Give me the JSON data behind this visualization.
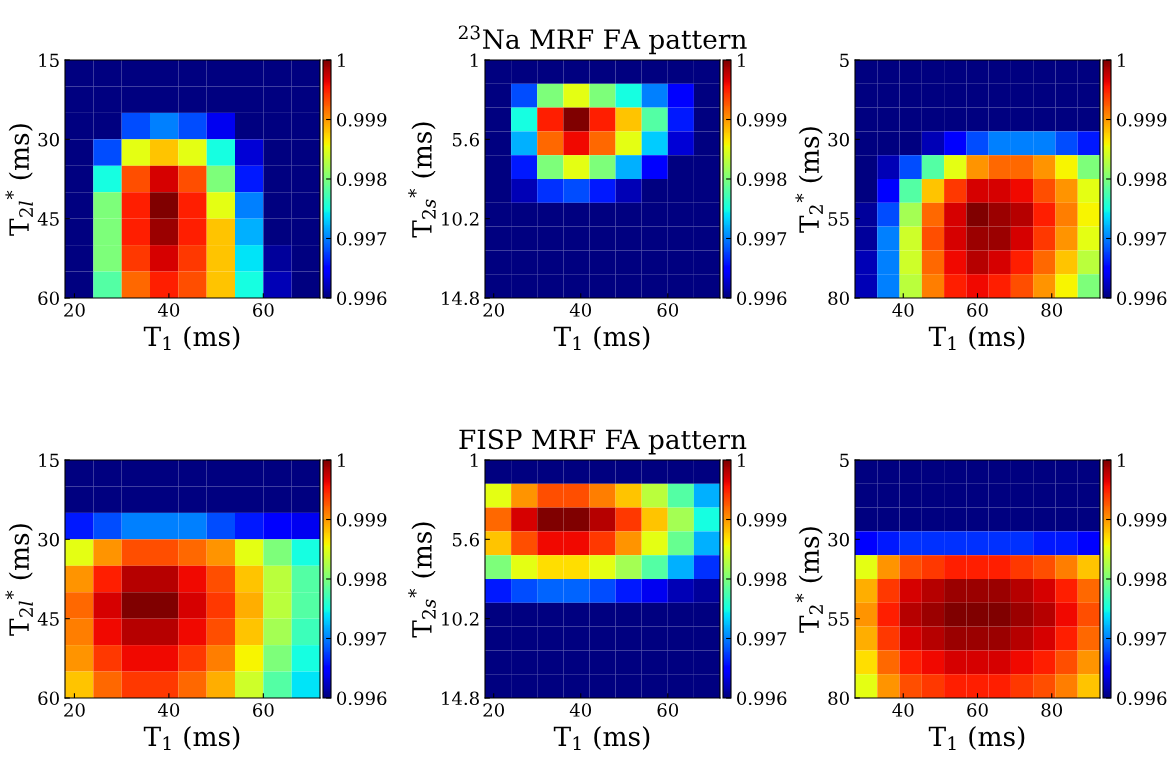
{
  "chart_data": [
    {
      "type": "heatmap",
      "xlabel": "T$_{1}$ (ms)",
      "ylabel": "T$_{2l}$$^{*}$ (ms)",
      "x": [
        21,
        27,
        33,
        39,
        45,
        51,
        57,
        63,
        69
      ],
      "y": [
        17.5,
        22.5,
        27.5,
        32.5,
        37.5,
        42.5,
        47.5,
        52.5,
        57.5
      ],
      "xlim": [
        18,
        72
      ],
      "ylim": [
        60,
        15
      ],
      "xticks": [
        20,
        40,
        60
      ],
      "yticks": [
        15,
        30,
        45,
        60
      ],
      "clim": [
        0.996,
        1
      ],
      "cticks": [
        0.996,
        0.997,
        0.998,
        0.999,
        1
      ],
      "cells": [
        [
          0.996,
          0.996,
          0.996,
          0.996,
          0.996,
          0.996,
          0.996,
          0.996,
          0.996
        ],
        [
          0.996,
          0.996,
          0.996,
          0.996,
          0.996,
          0.996,
          0.996,
          0.996,
          0.996
        ],
        [
          0.996,
          0.996,
          0.9968,
          0.997,
          0.9968,
          0.9964,
          0.996,
          0.996,
          0.996
        ],
        [
          0.996,
          0.9968,
          0.9985,
          0.9988,
          0.9985,
          0.9975,
          0.9963,
          0.996,
          0.996
        ],
        [
          0.996,
          0.9975,
          0.9993,
          0.9997,
          0.9993,
          0.998,
          0.9966,
          0.996,
          0.996
        ],
        [
          0.996,
          0.998,
          0.9995,
          1.0,
          0.9995,
          0.9985,
          0.997,
          0.996,
          0.996
        ],
        [
          0.996,
          0.998,
          0.9995,
          0.9999,
          0.9995,
          0.9988,
          0.9972,
          0.996,
          0.996
        ],
        [
          0.996,
          0.998,
          0.9994,
          0.9997,
          0.9994,
          0.9988,
          0.9974,
          0.9961,
          0.996
        ],
        [
          0.996,
          0.9978,
          0.9992,
          0.9995,
          0.9993,
          0.9988,
          0.9975,
          0.9962,
          0.996
        ]
      ]
    },
    {
      "type": "heatmap",
      "title": "$^{23}$Na MRF FA pattern",
      "xlabel": "T$_{1}$ (ms)",
      "ylabel": "T$_{2s}$$^{*}$ (ms)",
      "x": [
        21,
        27,
        33,
        39,
        45,
        51,
        57,
        63,
        69
      ],
      "y": [
        1.69,
        3.07,
        4.45,
        5.83,
        7.21,
        8.59,
        9.97,
        11.35,
        12.73,
        14.11
      ],
      "xlim": [
        18,
        72
      ],
      "ylim": [
        14.8,
        1
      ],
      "xticks": [
        20,
        40,
        60
      ],
      "yticks": [
        1,
        5.6,
        10.2,
        14.8
      ],
      "clim": [
        0.996,
        1
      ],
      "cticks": [
        0.996,
        0.997,
        0.998,
        0.999,
        1
      ],
      "cells": [
        [
          0.996,
          0.996,
          0.996,
          0.996,
          0.996,
          0.996,
          0.996,
          0.996,
          0.996
        ],
        [
          0.996,
          0.9968,
          0.998,
          0.9985,
          0.998,
          0.9975,
          0.997,
          0.9965,
          0.996
        ],
        [
          0.996,
          0.9975,
          0.9995,
          1.0,
          0.9995,
          0.9988,
          0.9978,
          0.9966,
          0.996
        ],
        [
          0.996,
          0.9972,
          0.9992,
          0.9996,
          0.9992,
          0.9985,
          0.9973,
          0.9963,
          0.996
        ],
        [
          0.996,
          0.9966,
          0.998,
          0.9985,
          0.998,
          0.9972,
          0.9965,
          0.996,
          0.996
        ],
        [
          0.996,
          0.9962,
          0.9967,
          0.9968,
          0.9966,
          0.9962,
          0.996,
          0.996,
          0.996
        ],
        [
          0.996,
          0.996,
          0.996,
          0.996,
          0.996,
          0.996,
          0.996,
          0.996,
          0.996
        ],
        [
          0.996,
          0.996,
          0.996,
          0.996,
          0.996,
          0.996,
          0.996,
          0.996,
          0.996
        ],
        [
          0.996,
          0.996,
          0.996,
          0.996,
          0.996,
          0.996,
          0.996,
          0.996,
          0.996
        ],
        [
          0.996,
          0.996,
          0.996,
          0.996,
          0.996,
          0.996,
          0.996,
          0.996,
          0.996
        ]
      ]
    },
    {
      "type": "heatmap",
      "xlabel": "T$_{1}$ (ms)",
      "ylabel": "T$_{2}$$^{*}$ (ms)",
      "x": [
        30,
        36,
        42,
        48,
        54,
        60,
        66,
        72,
        78,
        84,
        90
      ],
      "y": [
        8.75,
        16.25,
        23.75,
        31.25,
        38.75,
        46.25,
        53.75,
        61.25,
        68.75,
        76.25
      ],
      "xlim": [
        27,
        93
      ],
      "ylim": [
        80,
        5
      ],
      "xticks": [
        40,
        60,
        80
      ],
      "yticks": [
        5,
        30,
        55,
        80
      ],
      "clim": [
        0.996,
        1
      ],
      "cticks": [
        0.996,
        0.997,
        0.998,
        0.999,
        1
      ],
      "cells": [
        [
          0.996,
          0.996,
          0.996,
          0.996,
          0.996,
          0.996,
          0.996,
          0.996,
          0.996,
          0.996,
          0.996
        ],
        [
          0.996,
          0.996,
          0.996,
          0.996,
          0.996,
          0.996,
          0.996,
          0.996,
          0.996,
          0.996,
          0.996
        ],
        [
          0.996,
          0.996,
          0.996,
          0.996,
          0.996,
          0.996,
          0.996,
          0.996,
          0.996,
          0.996,
          0.996
        ],
        [
          0.996,
          0.996,
          0.996,
          0.9962,
          0.9965,
          0.9968,
          0.997,
          0.997,
          0.997,
          0.9968,
          0.9966
        ],
        [
          0.996,
          0.9962,
          0.9968,
          0.9978,
          0.9985,
          0.999,
          0.9992,
          0.9992,
          0.999,
          0.9986,
          0.998
        ],
        [
          0.996,
          0.9965,
          0.9978,
          0.9988,
          0.9994,
          0.9997,
          0.9997,
          0.9996,
          0.9993,
          0.999,
          0.9985
        ],
        [
          0.9961,
          0.9968,
          0.9982,
          0.9992,
          0.9997,
          1.0,
          0.9999,
          0.9998,
          0.9995,
          0.9991,
          0.9986
        ],
        [
          0.9961,
          0.997,
          0.9984,
          0.9993,
          0.9997,
          0.9999,
          0.9999,
          0.9997,
          0.9994,
          0.999,
          0.9985
        ],
        [
          0.9962,
          0.997,
          0.9984,
          0.9992,
          0.9996,
          0.9998,
          0.9997,
          0.9995,
          0.9992,
          0.9988,
          0.9983
        ],
        [
          0.9962,
          0.997,
          0.9983,
          0.9991,
          0.9995,
          0.9996,
          0.9995,
          0.9993,
          0.999,
          0.9986,
          0.998
        ]
      ]
    },
    {
      "type": "heatmap",
      "xlabel": "T$_{1}$ (ms)",
      "ylabel": "T$_{2l}$$^{*}$ (ms)",
      "x": [
        21,
        27,
        33,
        39,
        45,
        51,
        57,
        63,
        69
      ],
      "y": [
        17.5,
        22.5,
        27.5,
        32.5,
        37.5,
        42.5,
        47.5,
        52.5,
        57.5
      ],
      "xlim": [
        18,
        72
      ],
      "ylim": [
        60,
        15
      ],
      "xticks": [
        20,
        40,
        60
      ],
      "yticks": [
        15,
        30,
        45,
        60
      ],
      "clim": [
        0.996,
        1
      ],
      "cticks": [
        0.996,
        0.997,
        0.998,
        0.999,
        1
      ],
      "cells": [
        [
          0.996,
          0.996,
          0.996,
          0.996,
          0.996,
          0.996,
          0.996,
          0.996,
          0.996
        ],
        [
          0.996,
          0.996,
          0.996,
          0.996,
          0.996,
          0.996,
          0.996,
          0.996,
          0.996
        ],
        [
          0.9966,
          0.9968,
          0.997,
          0.997,
          0.997,
          0.9968,
          0.9966,
          0.9965,
          0.9964
        ],
        [
          0.9985,
          0.999,
          0.9993,
          0.9993,
          0.9992,
          0.999,
          0.9985,
          0.998,
          0.9975
        ],
        [
          0.999,
          0.9995,
          0.9998,
          0.9998,
          0.9996,
          0.9993,
          0.9988,
          0.9983,
          0.9978
        ],
        [
          0.9992,
          0.9997,
          1.0,
          1.0,
          0.9997,
          0.9994,
          0.9989,
          0.9983,
          0.9978
        ],
        [
          0.9991,
          0.9996,
          0.9998,
          0.9998,
          0.9996,
          0.9993,
          0.9988,
          0.9982,
          0.9977
        ],
        [
          0.999,
          0.9994,
          0.9996,
          0.9996,
          0.9994,
          0.9991,
          0.9986,
          0.998,
          0.9975
        ],
        [
          0.9988,
          0.9992,
          0.9994,
          0.9994,
          0.9992,
          0.9989,
          0.9984,
          0.9978,
          0.9974
        ]
      ]
    },
    {
      "type": "heatmap",
      "title": "FISP MRF FA pattern",
      "xlabel": "T$_{1}$ (ms)",
      "ylabel": "T$_{2s}$$^{*}$ (ms)",
      "x": [
        21,
        27,
        33,
        39,
        45,
        51,
        57,
        63,
        69
      ],
      "y": [
        1.69,
        3.07,
        4.45,
        5.83,
        7.21,
        8.59,
        9.97,
        11.35,
        12.73,
        14.11
      ],
      "xlim": [
        18,
        72
      ],
      "ylim": [
        14.8,
        1
      ],
      "xticks": [
        20,
        40,
        60
      ],
      "yticks": [
        1,
        5.6,
        10.2,
        14.8
      ],
      "clim": [
        0.996,
        1
      ],
      "cticks": [
        0.996,
        0.997,
        0.998,
        0.999,
        1
      ],
      "cells": [
        [
          0.996,
          0.996,
          0.996,
          0.996,
          0.996,
          0.996,
          0.996,
          0.996,
          0.996
        ],
        [
          0.9985,
          0.999,
          0.9993,
          0.9993,
          0.9991,
          0.9988,
          0.9983,
          0.9978,
          0.9972
        ],
        [
          0.9992,
          0.9997,
          1.0,
          1.0,
          0.9998,
          0.9994,
          0.9988,
          0.9982,
          0.9975
        ],
        [
          0.9988,
          0.9993,
          0.9996,
          0.9996,
          0.9994,
          0.999,
          0.9985,
          0.9979,
          0.9972
        ],
        [
          0.998,
          0.9985,
          0.9987,
          0.9987,
          0.9985,
          0.9982,
          0.9978,
          0.9972,
          0.9967
        ],
        [
          0.9966,
          0.9968,
          0.9969,
          0.9969,
          0.9968,
          0.9966,
          0.9964,
          0.9962,
          0.9961
        ],
        [
          0.996,
          0.996,
          0.996,
          0.996,
          0.996,
          0.996,
          0.996,
          0.996,
          0.996
        ],
        [
          0.996,
          0.996,
          0.996,
          0.996,
          0.996,
          0.996,
          0.996,
          0.996,
          0.996
        ],
        [
          0.996,
          0.996,
          0.996,
          0.996,
          0.996,
          0.996,
          0.996,
          0.996,
          0.996
        ],
        [
          0.996,
          0.996,
          0.996,
          0.996,
          0.996,
          0.996,
          0.996,
          0.996,
          0.996
        ]
      ]
    },
    {
      "type": "heatmap",
      "xlabel": "T$_{1}$ (ms)",
      "ylabel": "T$_{2}$$^{*}$ (ms)",
      "x": [
        30,
        36,
        42,
        48,
        54,
        60,
        66,
        72,
        78,
        84,
        90
      ],
      "y": [
        8.75,
        16.25,
        23.75,
        31.25,
        38.75,
        46.25,
        53.75,
        61.25,
        68.75,
        76.25
      ],
      "xlim": [
        27,
        93
      ],
      "ylim": [
        80,
        5
      ],
      "xticks": [
        40,
        60,
        80
      ],
      "yticks": [
        5,
        30,
        55,
        80
      ],
      "clim": [
        0.996,
        1
      ],
      "cticks": [
        0.996,
        0.997,
        0.998,
        0.999,
        1
      ],
      "cells": [
        [
          0.996,
          0.996,
          0.996,
          0.996,
          0.996,
          0.996,
          0.996,
          0.996,
          0.996,
          0.996,
          0.996
        ],
        [
          0.996,
          0.996,
          0.996,
          0.996,
          0.996,
          0.996,
          0.996,
          0.996,
          0.996,
          0.996,
          0.996
        ],
        [
          0.996,
          0.996,
          0.996,
          0.996,
          0.996,
          0.996,
          0.996,
          0.996,
          0.996,
          0.996,
          0.996
        ],
        [
          0.9965,
          0.9966,
          0.9967,
          0.9967,
          0.9967,
          0.9967,
          0.9967,
          0.9967,
          0.9966,
          0.9966,
          0.9965
        ],
        [
          0.9985,
          0.999,
          0.9993,
          0.9994,
          0.9995,
          0.9995,
          0.9995,
          0.9994,
          0.9993,
          0.9991,
          0.9988
        ],
        [
          0.9989,
          0.9994,
          0.9997,
          0.9998,
          0.9999,
          0.9999,
          0.9999,
          0.9998,
          0.9997,
          0.9995,
          0.9992
        ],
        [
          0.999,
          0.9995,
          0.9998,
          0.9999,
          1.0,
          1.0,
          1.0,
          0.9999,
          0.9998,
          0.9996,
          0.9993
        ],
        [
          0.9989,
          0.9994,
          0.9997,
          0.9998,
          0.9999,
          0.9999,
          0.9999,
          0.9998,
          0.9997,
          0.9995,
          0.9992
        ],
        [
          0.9987,
          0.9992,
          0.9995,
          0.9996,
          0.9997,
          0.9997,
          0.9997,
          0.9996,
          0.9995,
          0.9993,
          0.999
        ],
        [
          0.9985,
          0.999,
          0.9993,
          0.9994,
          0.9995,
          0.9995,
          0.9995,
          0.9994,
          0.9993,
          0.9991,
          0.9988
        ]
      ]
    }
  ]
}
